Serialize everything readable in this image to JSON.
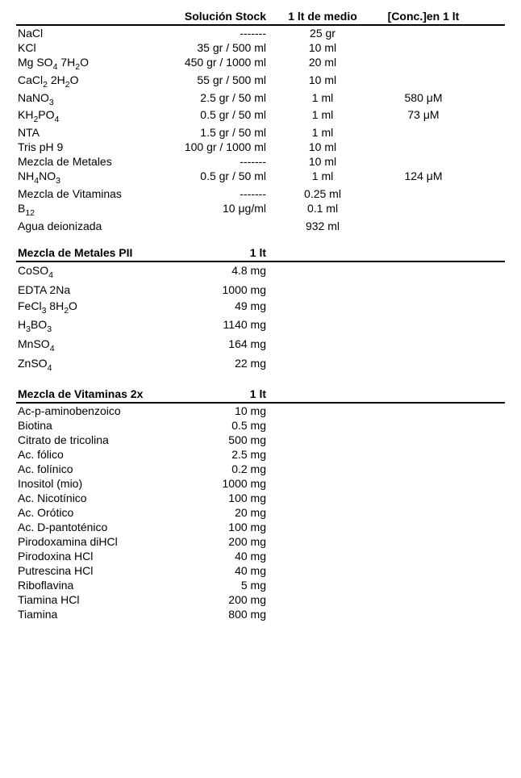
{
  "section1": {
    "headers": {
      "name": "",
      "stock": "Solución Stock",
      "medio": "1 lt de medio",
      "conc": "[Conc.]en 1 lt"
    },
    "rows": [
      {
        "name_html": "NaCl",
        "stock": "-------",
        "medio": "25 gr",
        "conc": ""
      },
      {
        "name_html": "KCl",
        "stock": "35 gr / 500 ml",
        "medio": "10 ml",
        "conc": ""
      },
      {
        "name_html": "Mg SO<sub>4</sub> 7H<sub>2</sub>O",
        "stock": "450 gr / 1000 ml",
        "medio": "20 ml",
        "conc": ""
      },
      {
        "name_html": "CaCl<sub>2</sub> 2H<sub>2</sub>O",
        "stock": "55 gr / 500 ml",
        "medio": "10 ml",
        "conc": ""
      },
      {
        "name_html": "NaNO<sub>3</sub>",
        "stock": "2.5 gr / 50  ml",
        "medio": "1 ml",
        "conc": "580 μM"
      },
      {
        "name_html": "KH<sub>2</sub>PO<sub>4</sub>",
        "stock": "0.5 gr / 50 ml",
        "medio": "1 ml",
        "conc": "73 μM"
      },
      {
        "name_html": "NTA",
        "stock": "1.5 gr / 50 ml",
        "medio": "1 ml",
        "conc": ""
      },
      {
        "name_html": "Tris pH 9",
        "stock": "100 gr / 1000 ml",
        "medio": "10 ml",
        "conc": ""
      },
      {
        "name_html": "Mezcla de Metales",
        "stock": "-------",
        "medio": "10 ml",
        "conc": ""
      },
      {
        "name_html": "NH<sub>4</sub>NO<sub>3</sub>",
        "stock": "0.5 gr / 50 ml",
        "medio": "1 ml",
        "conc": "124 μM"
      },
      {
        "name_html": "Mezcla de Vitaminas",
        "stock": "-------",
        "medio": "0.25 ml",
        "conc": ""
      },
      {
        "name_html": "B<sub>12</sub>",
        "stock": "10 μg/ml",
        "medio": "0.1 ml",
        "conc": ""
      },
      {
        "name_html": "Agua deionizada",
        "stock": "",
        "medio": "932 ml",
        "conc": ""
      }
    ]
  },
  "section2": {
    "title": "Mezcla de Metales PII",
    "amount_header": "1 lt",
    "rows": [
      {
        "name_html": "CoSO<sub>4</sub>",
        "amount": "4.8 mg"
      },
      {
        "name_html": "EDTA 2Na",
        "amount": "1000 mg"
      },
      {
        "name_html": "FeCl<sub>3</sub> 8H<sub>2</sub>O",
        "amount": "49 mg"
      },
      {
        "name_html": "H<sub>3</sub>BO<sub>3</sub>",
        "amount": "1140 mg"
      },
      {
        "name_html": "MnSO<sub>4</sub>",
        "amount": "164 mg"
      },
      {
        "name_html": "ZnSO<sub>4</sub>",
        "amount": "22 mg"
      }
    ]
  },
  "section3": {
    "title": "Mezcla de Vitaminas 2x",
    "amount_header": "1 lt",
    "rows": [
      {
        "name_html": "Ac-p-aminobenzoico",
        "amount": "10 mg"
      },
      {
        "name_html": "Biotina",
        "amount": "0.5 mg"
      },
      {
        "name_html": "Citrato de tricolina",
        "amount": "500 mg"
      },
      {
        "name_html": "Ac. fólico",
        "amount": "2.5 mg"
      },
      {
        "name_html": "Ac. folínico",
        "amount": "0.2 mg"
      },
      {
        "name_html": "Inositol (mio)",
        "amount": "1000 mg"
      },
      {
        "name_html": "Ac. Nicotínico",
        "amount": "100 mg"
      },
      {
        "name_html": "Ac. Orótico",
        "amount": "20 mg"
      },
      {
        "name_html": "Ac. D-pantoténico",
        "amount": "100 mg"
      },
      {
        "name_html": "Pirodoxamina diHCl",
        "amount": "200 mg"
      },
      {
        "name_html": "Pirodoxina HCl",
        "amount": "40 mg"
      },
      {
        "name_html": "Putrescina HCl",
        "amount": "40 mg"
      },
      {
        "name_html": "Riboflavina",
        "amount": "5 mg"
      },
      {
        "name_html": "Tiamina HCl",
        "amount": "200 mg"
      },
      {
        "name_html": "Tiamina",
        "amount": "800 mg"
      }
    ]
  }
}
